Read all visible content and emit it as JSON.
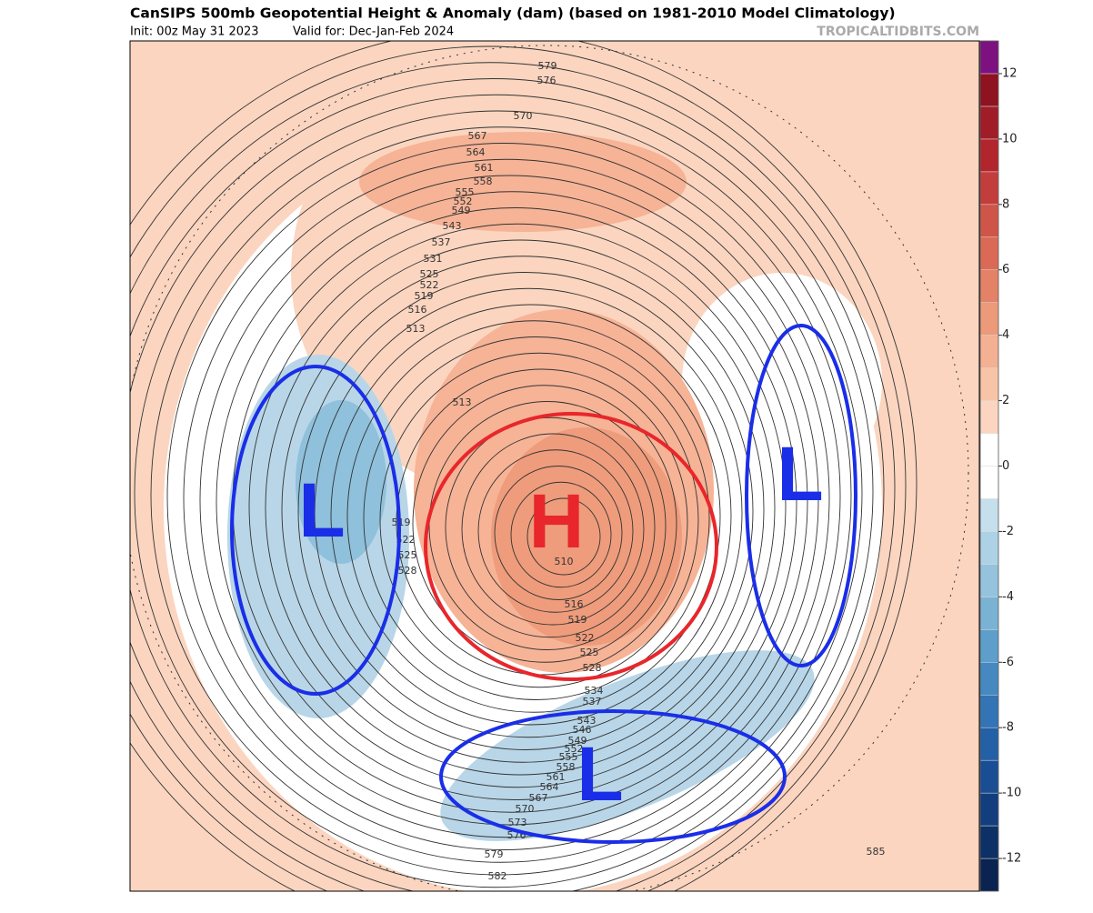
{
  "header": {
    "title": "CanSIPS 500mb Geopotential Height & Anomaly (dam) (based on 1981-2010 Model Climatology)",
    "init": "Init: 00z May 31 2023",
    "valid": "Valid for: Dec-Jan-Feb 2024",
    "credit": "TROPICALTIDBITS.COM"
  },
  "map": {
    "contour_labels": [
      579,
      576,
      570,
      567,
      564,
      561,
      558,
      555,
      552,
      549,
      543,
      537,
      531,
      525,
      522,
      519,
      516,
      513,
      513,
      519,
      522,
      525,
      528,
      510,
      516,
      519,
      522,
      525,
      528,
      534,
      537,
      543,
      546,
      549,
      552,
      555,
      558,
      561,
      564,
      567,
      570,
      573,
      576,
      579,
      582,
      585
    ],
    "systems": [
      "L",
      "H",
      "L",
      "L"
    ]
  },
  "colorbar": {
    "lim": [
      -13,
      13
    ],
    "ticks": [
      -12,
      -10,
      -8,
      -6,
      -4,
      -2,
      0,
      2,
      4,
      6,
      8,
      10,
      12
    ],
    "colors": [
      "#0a2350",
      "#0d3066",
      "#123e7e",
      "#194e94",
      "#2460a6",
      "#3274b4",
      "#4589c0",
      "#5d9ecb",
      "#7ab2d4",
      "#95c3dd",
      "#aed2e5",
      "#c6dfec",
      "#ffffff",
      "#ffffff",
      "#fbd5c0",
      "#f8c4a8",
      "#f3b092",
      "#ec9a79",
      "#e38266",
      "#da6a55",
      "#cf5548",
      "#c33d3c",
      "#b3252c",
      "#a01c26",
      "#8e1220",
      "#7d1180"
    ]
  }
}
